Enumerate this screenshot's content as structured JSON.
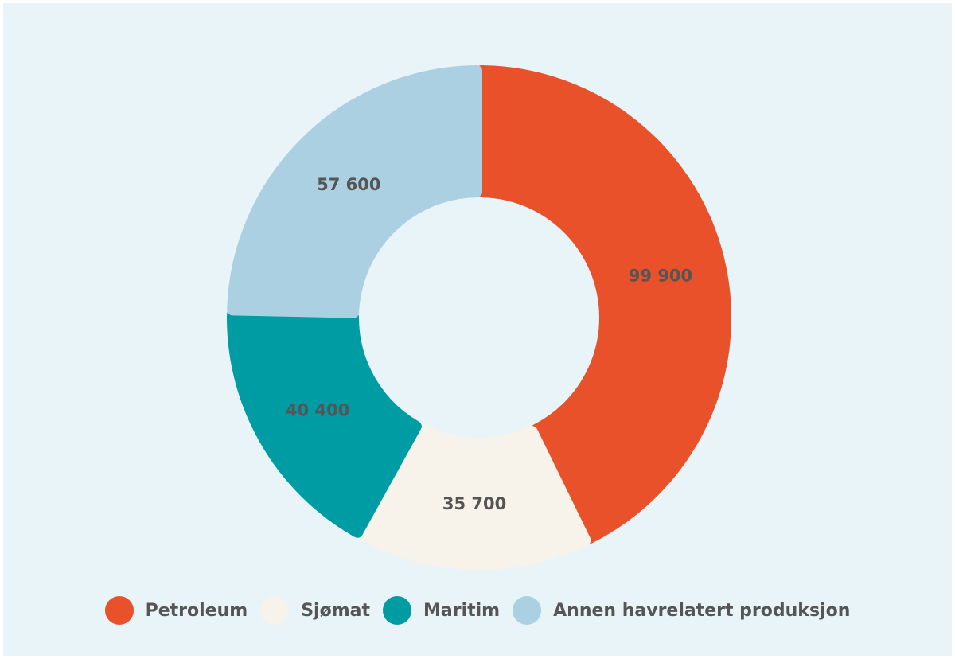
{
  "chart_data": {
    "type": "pie",
    "categories": [
      "Petroleum",
      "Sjømat",
      "Maritim",
      "Annen havrelatert produksjon"
    ],
    "values": [
      99900,
      35700,
      40400,
      57600
    ],
    "value_labels": [
      "99 900",
      "35 700",
      "40 400",
      "57 600"
    ],
    "colors": [
      "#e8512a",
      "#f8f3ea",
      "#009ca4",
      "#abd0e1"
    ],
    "donut": true,
    "legend_position": "bottom"
  }
}
